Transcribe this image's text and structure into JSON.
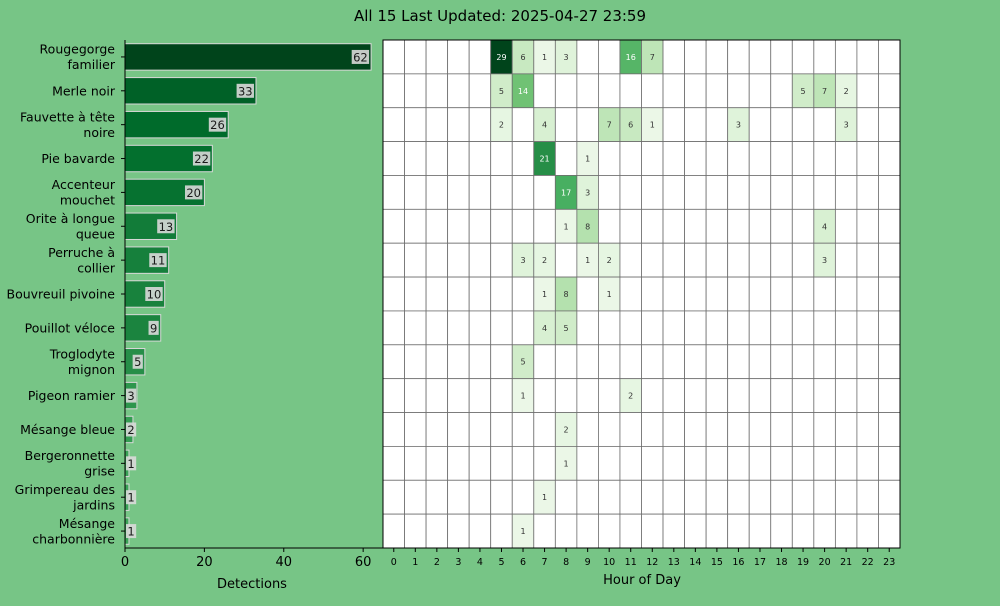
{
  "title": "All 15 Last Updated: 2025-04-27 23:59",
  "chart_data": [
    {
      "type": "bar",
      "orientation": "horizontal",
      "categories": [
        "Rougegorge familier",
        "Merle noir",
        "Fauvette à tête noire",
        "Pie bavarde",
        "Accenteur mouchet",
        "Orite à longue queue",
        "Perruche à collier",
        "Bouvreuil pivoine",
        "Pouillot véloce",
        "Troglodyte mignon",
        "Pigeon ramier",
        "Mésange bleue",
        "Bergeronnette grise",
        "Grimpereau des jardins",
        "Mésange charbonnière"
      ],
      "label_lines": [
        [
          "Rougegorge",
          "familier"
        ],
        [
          "Merle noir"
        ],
        [
          "Fauvette à tête",
          "noire"
        ],
        [
          "Pie bavarde"
        ],
        [
          "Accenteur",
          "mouchet"
        ],
        [
          "Orite à longue",
          "queue"
        ],
        [
          "Perruche à",
          "collier"
        ],
        [
          "Bouvreuil pivoine"
        ],
        [
          "Pouillot véloce"
        ],
        [
          "Troglodyte",
          "mignon"
        ],
        [
          "Pigeon ramier"
        ],
        [
          "Mésange bleue"
        ],
        [
          "Bergeronnette",
          "grise"
        ],
        [
          "Grimpereau des",
          "jardins"
        ],
        [
          "Mésange",
          "charbonnière"
        ]
      ],
      "values": [
        62,
        33,
        26,
        22,
        20,
        13,
        11,
        10,
        9,
        5,
        3,
        2,
        1,
        1,
        1
      ],
      "xlabel": "Detections",
      "xlim": [
        0,
        65
      ],
      "xticks": [
        0,
        20,
        40,
        60
      ]
    },
    {
      "type": "heatmap",
      "xlabel": "Hour of Day",
      "hours": [
        "0",
        "1",
        "2",
        "3",
        "4",
        "5",
        "6",
        "7",
        "8",
        "9",
        "10",
        "11",
        "12",
        "13",
        "14",
        "15",
        "16",
        "17",
        "18",
        "19",
        "20",
        "21",
        "22",
        "23"
      ],
      "highlight_hour": "23",
      "highlight_color": "#ffff44",
      "max_value": 29,
      "cells": [
        [
          0,
          0,
          0,
          0,
          0,
          29,
          6,
          1,
          3,
          0,
          0,
          16,
          7,
          0,
          0,
          0,
          0,
          0,
          0,
          0,
          0,
          0,
          0,
          0
        ],
        [
          0,
          0,
          0,
          0,
          0,
          5,
          14,
          0,
          0,
          0,
          0,
          0,
          0,
          0,
          0,
          0,
          0,
          0,
          0,
          5,
          7,
          2,
          0,
          0
        ],
        [
          0,
          0,
          0,
          0,
          0,
          2,
          0,
          4,
          0,
          0,
          7,
          6,
          1,
          0,
          0,
          0,
          3,
          0,
          0,
          0,
          0,
          3,
          0,
          0
        ],
        [
          0,
          0,
          0,
          0,
          0,
          0,
          0,
          21,
          0,
          1,
          0,
          0,
          0,
          0,
          0,
          0,
          0,
          0,
          0,
          0,
          0,
          0,
          0,
          0
        ],
        [
          0,
          0,
          0,
          0,
          0,
          0,
          0,
          0,
          17,
          3,
          0,
          0,
          0,
          0,
          0,
          0,
          0,
          0,
          0,
          0,
          0,
          0,
          0,
          0
        ],
        [
          0,
          0,
          0,
          0,
          0,
          0,
          0,
          0,
          1,
          8,
          0,
          0,
          0,
          0,
          0,
          0,
          0,
          0,
          0,
          0,
          4,
          0,
          0,
          0
        ],
        [
          0,
          0,
          0,
          0,
          0,
          0,
          3,
          2,
          0,
          1,
          2,
          0,
          0,
          0,
          0,
          0,
          0,
          0,
          0,
          0,
          3,
          0,
          0,
          0
        ],
        [
          0,
          0,
          0,
          0,
          0,
          0,
          0,
          1,
          8,
          0,
          1,
          0,
          0,
          0,
          0,
          0,
          0,
          0,
          0,
          0,
          0,
          0,
          0,
          0
        ],
        [
          0,
          0,
          0,
          0,
          0,
          0,
          0,
          4,
          5,
          0,
          0,
          0,
          0,
          0,
          0,
          0,
          0,
          0,
          0,
          0,
          0,
          0,
          0,
          0
        ],
        [
          0,
          0,
          0,
          0,
          0,
          0,
          5,
          0,
          0,
          0,
          0,
          0,
          0,
          0,
          0,
          0,
          0,
          0,
          0,
          0,
          0,
          0,
          0,
          0
        ],
        [
          0,
          0,
          0,
          0,
          0,
          0,
          1,
          0,
          0,
          0,
          0,
          2,
          0,
          0,
          0,
          0,
          0,
          0,
          0,
          0,
          0,
          0,
          0,
          0
        ],
        [
          0,
          0,
          0,
          0,
          0,
          0,
          0,
          0,
          2,
          0,
          0,
          0,
          0,
          0,
          0,
          0,
          0,
          0,
          0,
          0,
          0,
          0,
          0,
          0
        ],
        [
          0,
          0,
          0,
          0,
          0,
          0,
          0,
          0,
          1,
          0,
          0,
          0,
          0,
          0,
          0,
          0,
          0,
          0,
          0,
          0,
          0,
          0,
          0,
          0
        ],
        [
          0,
          0,
          0,
          0,
          0,
          0,
          0,
          1,
          0,
          0,
          0,
          0,
          0,
          0,
          0,
          0,
          0,
          0,
          0,
          0,
          0,
          0,
          0,
          0
        ],
        [
          0,
          0,
          0,
          0,
          0,
          0,
          1,
          0,
          0,
          0,
          0,
          0,
          0,
          0,
          0,
          0,
          0,
          0,
          0,
          0,
          0,
          0,
          0,
          0
        ]
      ]
    }
  ]
}
